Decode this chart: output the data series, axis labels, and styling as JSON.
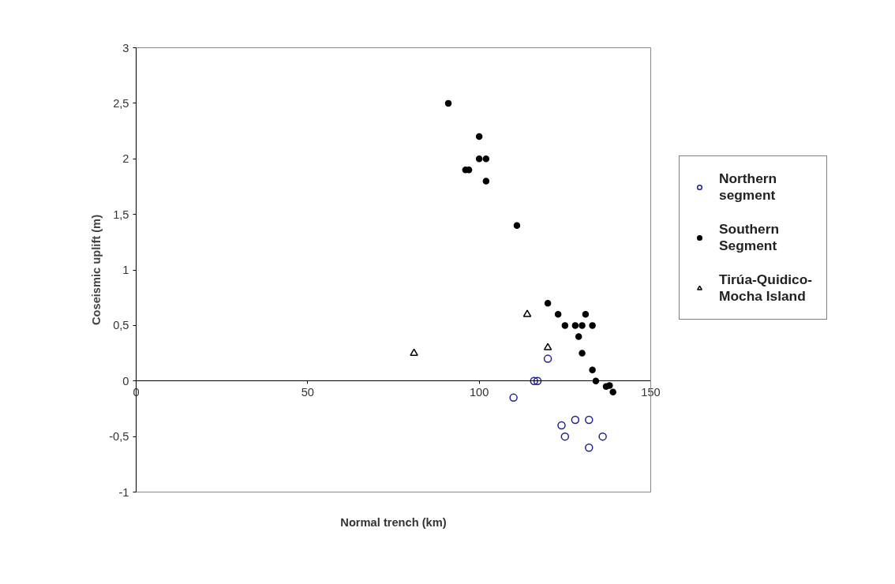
{
  "chart_data": {
    "type": "scatter",
    "xlabel": "Normal trench (km)",
    "ylabel": "Coseismic uplift (m)",
    "xlim": [
      0,
      150
    ],
    "xticks": [
      0,
      50,
      100,
      150
    ],
    "ylim": [
      -1,
      3
    ],
    "yticks": [
      {
        "value": -1,
        "label": "-1"
      },
      {
        "value": -0.5,
        "label": "-0,5"
      },
      {
        "value": 0,
        "label": "0"
      },
      {
        "value": 0.5,
        "label": "0,5"
      },
      {
        "value": 1,
        "label": "1"
      },
      {
        "value": 1.5,
        "label": "1,5"
      },
      {
        "value": 2,
        "label": "2"
      },
      {
        "value": 2.5,
        "label": "2,5"
      },
      {
        "value": 3,
        "label": "3"
      }
    ],
    "grid": false,
    "legend": "right",
    "series": [
      {
        "name": "Northern segment",
        "color": "#1f1f8f",
        "marker": "circle",
        "x": [
          120,
          116,
          117,
          110,
          124,
          125,
          128,
          132,
          136,
          132
        ],
        "values": [
          0.2,
          0,
          0,
          -0.15,
          -0.4,
          -0.5,
          -0.35,
          -0.35,
          -0.5,
          -0.6
        ]
      },
      {
        "name": "Southern Segment",
        "color": "#000000",
        "marker": "dot",
        "x": [
          91,
          100,
          100,
          102,
          96,
          97,
          102,
          111,
          120,
          123,
          125,
          128,
          130,
          131,
          133,
          129,
          130,
          133,
          134,
          137,
          138,
          139
        ],
        "values": [
          2.5,
          2.2,
          2.0,
          2.0,
          1.9,
          1.9,
          1.8,
          1.4,
          0.7,
          0.6,
          0.5,
          0.5,
          0.5,
          0.6,
          0.5,
          0.4,
          0.25,
          0.1,
          0,
          -0.05,
          -0.04,
          -0.1
        ]
      },
      {
        "name": "Tirúa-Quidico-Mocha Island",
        "color": "#000000",
        "marker": "triangle",
        "x": [
          81,
          114,
          120
        ],
        "values": [
          0.25,
          0.6,
          0.3
        ]
      }
    ]
  }
}
